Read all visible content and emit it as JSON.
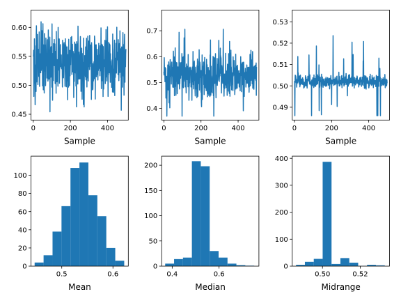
{
  "chart_data": [
    {
      "type": "line",
      "xlabel": "Sample",
      "ylabel": "",
      "xlim": [
        -12,
        512
      ],
      "ylim": [
        0.44,
        0.63
      ],
      "xticks": [
        0,
        200,
        400
      ],
      "yticks": [
        0.45,
        0.5,
        0.55,
        0.6
      ],
      "ytick_labels": [
        "0.45",
        "0.50",
        "0.55",
        "0.60"
      ],
      "n_points": 500,
      "center": 0.54,
      "spread": 0.026,
      "y_min": 0.447,
      "y_max": 0.622,
      "color": "#1f77b4"
    },
    {
      "type": "line",
      "xlabel": "Sample",
      "ylabel": "",
      "xlim": [
        -12,
        512
      ],
      "ylim": [
        0.355,
        0.78
      ],
      "xticks": [
        0,
        200,
        400
      ],
      "yticks": [
        0.4,
        0.5,
        0.6,
        0.7
      ],
      "ytick_labels": [
        "0.4",
        "0.5",
        "0.6",
        "0.7"
      ],
      "n_points": 500,
      "center": 0.53,
      "spread": 0.04,
      "y_min": 0.37,
      "y_max": 0.75,
      "color": "#1f77b4"
    },
    {
      "type": "line",
      "xlabel": "Sample",
      "ylabel": "",
      "xlim": [
        -12,
        512
      ],
      "ylim": [
        0.484,
        0.5355
      ],
      "xticks": [
        0,
        200,
        400
      ],
      "yticks": [
        0.49,
        0.5,
        0.51,
        0.52,
        0.53
      ],
      "ytick_labels": [
        "0.49",
        "0.50",
        "0.51",
        "0.52",
        "0.53"
      ],
      "n_points": 500,
      "center": 0.502,
      "spread": 0.0015,
      "y_min": 0.486,
      "y_max": 0.533,
      "color": "#1f77b4"
    },
    {
      "type": "bar",
      "subtype": "histogram",
      "xlabel": "Mean",
      "ylabel": "",
      "xlim": [
        0.44,
        0.63
      ],
      "ylim": [
        0,
        121
      ],
      "xticks": [
        0.5,
        0.6
      ],
      "xtick_labels": [
        "0.5",
        "0.6"
      ],
      "yticks": [
        0,
        20,
        40,
        60,
        80,
        100
      ],
      "bin_edges": [
        0.447,
        0.4645,
        0.482,
        0.4995,
        0.517,
        0.5345,
        0.552,
        0.5695,
        0.587,
        0.6045,
        0.622
      ],
      "counts": [
        4,
        12,
        38,
        66,
        108,
        114,
        78,
        55,
        20,
        6
      ],
      "color": "#1f77b4"
    },
    {
      "type": "bar",
      "subtype": "histogram",
      "xlabel": "Median",
      "ylabel": "",
      "xlim": [
        0.355,
        0.77
      ],
      "ylim": [
        0,
        218
      ],
      "xticks": [
        0.4,
        0.6
      ],
      "xtick_labels": [
        "0.4",
        "0.6"
      ],
      "yticks": [
        0,
        50,
        100,
        150,
        200
      ],
      "bin_edges": [
        0.37,
        0.408,
        0.446,
        0.484,
        0.522,
        0.56,
        0.598,
        0.636,
        0.674,
        0.712,
        0.75
      ],
      "counts": [
        5,
        14,
        17,
        208,
        198,
        30,
        17,
        5,
        2,
        1
      ],
      "color": "#1f77b4"
    },
    {
      "type": "bar",
      "subtype": "histogram",
      "xlabel": "Midrange",
      "ylabel": "",
      "xlim": [
        0.484,
        0.5355
      ],
      "ylim": [
        0,
        408
      ],
      "xticks": [
        0.5,
        0.52
      ],
      "xtick_labels": [
        "0.50",
        "0.52"
      ],
      "yticks": [
        0,
        100,
        200,
        300,
        400
      ],
      "bin_edges": [
        0.486,
        0.4907,
        0.4954,
        0.5001,
        0.5048,
        0.5095,
        0.5142,
        0.5189,
        0.5236,
        0.5283,
        0.533
      ],
      "counts": [
        5,
        16,
        27,
        387,
        8,
        30,
        13,
        1,
        5,
        3
      ],
      "color": "#1f77b4"
    }
  ]
}
